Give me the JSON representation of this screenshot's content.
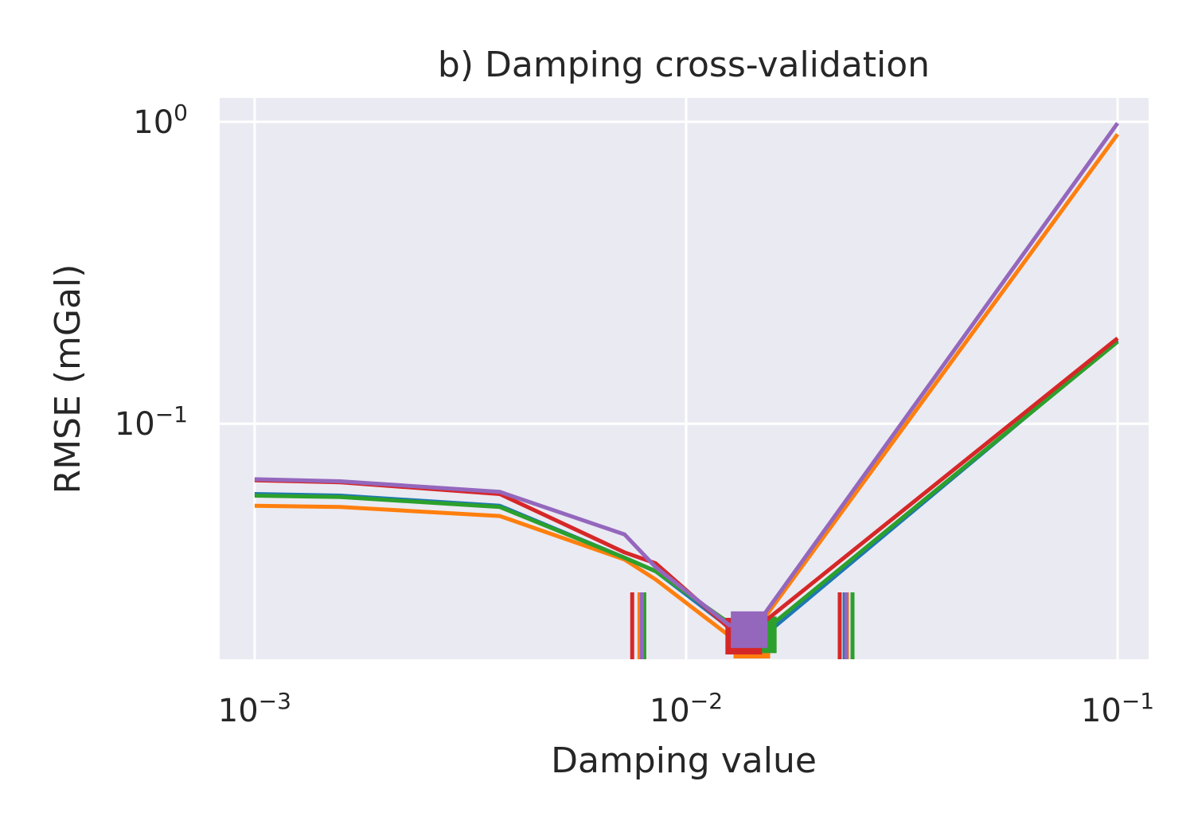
{
  "chart_data": {
    "type": "line",
    "title": "b) Damping cross-validation",
    "xlabel": "Damping value",
    "ylabel": "RMSE (mGal)",
    "xscale": "log",
    "yscale": "log",
    "xlim": [
      0.00083,
      0.118
    ],
    "ylim": [
      0.0166,
      1.2
    ],
    "grid": true,
    "legend": "none",
    "xticks": [
      {
        "value": 0.001,
        "base": "10",
        "exp": "−3"
      },
      {
        "value": 0.01,
        "base": "10",
        "exp": "−2"
      },
      {
        "value": 0.1,
        "base": "10",
        "exp": "−1"
      }
    ],
    "yticks": [
      {
        "value": 0.1,
        "base": "10",
        "exp": "−1"
      },
      {
        "value": 1,
        "base": "10",
        "exp": "0"
      }
    ],
    "series": [
      {
        "color": "#1f77b4",
        "x": [
          0.001,
          0.00158,
          0.0037,
          0.0072,
          0.0085,
          0.0128,
          0.0151,
          0.1
        ],
        "y": [
          0.0585,
          0.0578,
          0.0535,
          0.036,
          0.0325,
          0.0208,
          0.0198,
          0.189
        ],
        "best": {
          "x": 0.0142,
          "y": 0.0194
        },
        "bounds": [
          0.0078,
          0.0233
        ]
      },
      {
        "color": "#ff7f0e",
        "x": [
          0.001,
          0.00158,
          0.0037,
          0.0072,
          0.0085,
          0.0125,
          0.015,
          0.1
        ],
        "y": [
          0.0535,
          0.053,
          0.0495,
          0.0355,
          0.0305,
          0.02,
          0.0222,
          0.91
        ],
        "best": {
          "x": 0.0142,
          "y": 0.0192
        },
        "bounds": [
          0.0078,
          0.0236
        ]
      },
      {
        "color": "#2ca02c",
        "x": [
          0.001,
          0.00158,
          0.0037,
          0.0072,
          0.0085,
          0.0128,
          0.0151,
          0.1
        ],
        "y": [
          0.0578,
          0.0572,
          0.053,
          0.036,
          0.0325,
          0.0215,
          0.0205,
          0.187
        ],
        "best": {
          "x": 0.0147,
          "y": 0.02
        },
        "bounds": [
          0.008,
          0.0243
        ]
      },
      {
        "color": "#d62728",
        "x": [
          0.001,
          0.00158,
          0.0037,
          0.0072,
          0.0085,
          0.0126,
          0.015,
          0.1
        ],
        "y": [
          0.065,
          0.064,
          0.0585,
          0.0375,
          0.0345,
          0.021,
          0.0218,
          0.192
        ],
        "best": {
          "x": 0.0136,
          "y": 0.0198
        },
        "bounds": [
          0.0075,
          0.0227
        ]
      },
      {
        "color": "#9467bd",
        "x": [
          0.001,
          0.00158,
          0.0037,
          0.0072,
          0.0085,
          0.0126,
          0.0152,
          0.1
        ],
        "y": [
          0.0655,
          0.0645,
          0.0595,
          0.043,
          0.0335,
          0.0215,
          0.0235,
          0.99
        ],
        "best": {
          "x": 0.014,
          "y": 0.0208
        },
        "bounds": [
          0.0079,
          0.0235
        ]
      }
    ]
  }
}
